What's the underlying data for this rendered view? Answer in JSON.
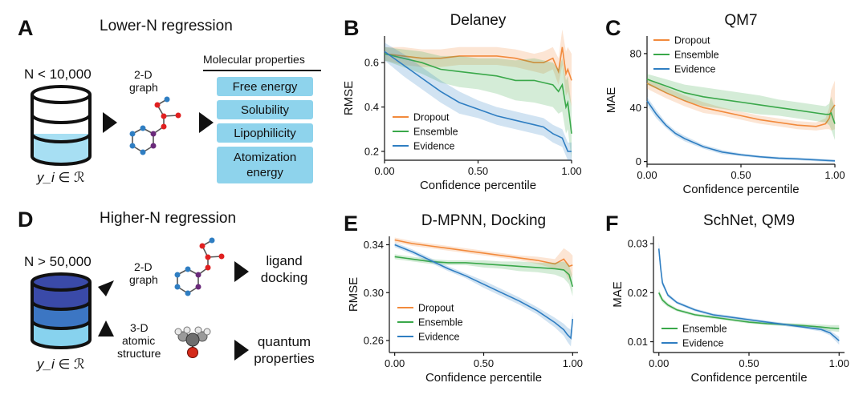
{
  "panels": {
    "A": {
      "label": "A",
      "title": "Lower-N regression"
    },
    "B": {
      "label": "B"
    },
    "C": {
      "label": "C"
    },
    "D": {
      "label": "D",
      "title": "Higher-N regression"
    },
    "E": {
      "label": "E"
    },
    "F": {
      "label": "F"
    }
  },
  "diagram_a": {
    "n_label": "N < 10,000",
    "y_label": "y_i ∈ ℛ",
    "graph_label_1": "2-D",
    "graph_label_2": "graph",
    "props_header": "Molecular properties",
    "props": [
      "Free energy",
      "Solubility",
      "Lipophilicity",
      "Atomization",
      "energy"
    ],
    "box_color": "#8ed3ec",
    "db_fill": "#a7dff3"
  },
  "diagram_d": {
    "n_label": "N > 50,000",
    "y_label": "y_i ∈ ℛ",
    "graph_label_1": "2-D",
    "graph_label_2": "graph",
    "struct_label_1": "3-D",
    "struct_label_2": "atomic",
    "struct_label_3": "structure",
    "out1_line1": "ligand",
    "out1_line2": "docking",
    "out2_line1": "quantum",
    "out2_line2": "properties",
    "db_colors": [
      "#3a4aa8",
      "#3c76c3",
      "#87d2ee"
    ]
  },
  "colors": {
    "Dropout": "#f28a3c",
    "Ensemble": "#3aa84a",
    "Evidence": "#2f7ec2"
  },
  "chart_data": [
    {
      "id": "B",
      "type": "line",
      "title": "Delaney",
      "xlabel": "Confidence percentile",
      "ylabel": "RMSE",
      "xlim": [
        0,
        1
      ],
      "ylim": [
        0.16,
        0.72
      ],
      "xticks": [
        0,
        0.5,
        1.0
      ],
      "xticklabels": [
        "0.00",
        "0.50",
        "1.00"
      ],
      "yticks": [
        0.2,
        0.4,
        0.6
      ],
      "yticklabels": [
        "0.2",
        "0.4",
        "0.6"
      ],
      "legend": "bottom-left",
      "series": [
        {
          "name": "Dropout",
          "x": [
            0,
            0.1,
            0.2,
            0.3,
            0.4,
            0.5,
            0.6,
            0.7,
            0.8,
            0.85,
            0.9,
            0.93,
            0.95,
            0.97,
            0.98,
            1.0
          ],
          "y": [
            0.64,
            0.63,
            0.62,
            0.62,
            0.63,
            0.63,
            0.63,
            0.62,
            0.6,
            0.6,
            0.62,
            0.56,
            0.67,
            0.55,
            0.57,
            0.52
          ],
          "band": [
            0.03,
            0.04,
            0.04,
            0.04,
            0.04,
            0.04,
            0.04,
            0.04,
            0.04,
            0.05,
            0.05,
            0.06,
            0.08,
            0.1,
            0.1,
            0.12
          ]
        },
        {
          "name": "Ensemble",
          "x": [
            0,
            0.1,
            0.2,
            0.3,
            0.4,
            0.5,
            0.6,
            0.7,
            0.8,
            0.85,
            0.9,
            0.93,
            0.95,
            0.97,
            0.98,
            1.0
          ],
          "y": [
            0.64,
            0.62,
            0.6,
            0.57,
            0.56,
            0.55,
            0.54,
            0.52,
            0.52,
            0.51,
            0.5,
            0.47,
            0.5,
            0.4,
            0.42,
            0.28
          ],
          "band": [
            0.03,
            0.04,
            0.05,
            0.06,
            0.07,
            0.07,
            0.08,
            0.09,
            0.1,
            0.1,
            0.1,
            0.1,
            0.12,
            0.12,
            0.12,
            0.12
          ]
        },
        {
          "name": "Evidence",
          "x": [
            0,
            0.1,
            0.2,
            0.3,
            0.4,
            0.5,
            0.6,
            0.7,
            0.8,
            0.85,
            0.9,
            0.95,
            0.98,
            1.0
          ],
          "y": [
            0.65,
            0.59,
            0.53,
            0.47,
            0.42,
            0.39,
            0.36,
            0.34,
            0.32,
            0.31,
            0.28,
            0.26,
            0.2,
            0.2
          ],
          "band": [
            0.04,
            0.05,
            0.05,
            0.05,
            0.05,
            0.04,
            0.04,
            0.04,
            0.04,
            0.04,
            0.04,
            0.04,
            0.04,
            0.04
          ]
        }
      ]
    },
    {
      "id": "C",
      "type": "line",
      "title": "QM7",
      "xlabel": "Confidence percentile",
      "ylabel": "MAE",
      "xlim": [
        0,
        1
      ],
      "ylim": [
        -2,
        93
      ],
      "xticks": [
        0,
        0.5,
        1.0
      ],
      "xticklabels": [
        "0.00",
        "0.50",
        "1.00"
      ],
      "yticks": [
        0,
        40,
        80
      ],
      "yticklabels": [
        "0",
        "40",
        "80"
      ],
      "legend": "top-left",
      "series": [
        {
          "name": "Dropout",
          "x": [
            0,
            0.1,
            0.2,
            0.3,
            0.4,
            0.5,
            0.6,
            0.7,
            0.8,
            0.9,
            0.95,
            0.97,
            0.98,
            1.0
          ],
          "y": [
            58,
            51,
            45,
            40,
            37,
            34,
            31,
            29,
            27,
            26,
            28,
            32,
            38,
            42
          ],
          "band": [
            4,
            4,
            4,
            4,
            3,
            3,
            3,
            3,
            3,
            3,
            4,
            8,
            15,
            18
          ]
        },
        {
          "name": "Ensemble",
          "x": [
            0,
            0.1,
            0.2,
            0.3,
            0.4,
            0.5,
            0.6,
            0.7,
            0.8,
            0.9,
            0.95,
            0.97,
            0.98,
            1.0
          ],
          "y": [
            61,
            56,
            51,
            48,
            46,
            44,
            42,
            40,
            38,
            36,
            35,
            35,
            36,
            28
          ],
          "band": [
            4,
            5,
            6,
            7,
            7,
            7,
            7,
            6,
            6,
            6,
            6,
            8,
            12,
            12
          ]
        },
        {
          "name": "Evidence",
          "x": [
            0,
            0.05,
            0.1,
            0.15,
            0.2,
            0.3,
            0.4,
            0.5,
            0.6,
            0.7,
            0.8,
            0.9,
            1.0
          ],
          "y": [
            45,
            35,
            27,
            21,
            17,
            11,
            7,
            5,
            3.5,
            2.5,
            2,
            1.2,
            0.5
          ],
          "band": [
            3,
            3,
            2,
            2,
            2,
            1.5,
            1.5,
            1,
            1,
            1,
            1,
            1,
            1
          ]
        }
      ]
    },
    {
      "id": "E",
      "type": "line",
      "title": "D-MPNN, Docking",
      "xlabel": "Confidence percentile",
      "ylabel": "RMSE",
      "xlim": [
        -0.03,
        1.03
      ],
      "ylim": [
        0.25,
        0.347
      ],
      "xticks": [
        0,
        0.5,
        1.0
      ],
      "xticklabels": [
        "0.00",
        "0.50",
        "1.00"
      ],
      "yticks": [
        0.26,
        0.3,
        0.34
      ],
      "yticklabels": [
        "0.26",
        "0.30",
        "0.34"
      ],
      "legend": "bottom-left",
      "series": [
        {
          "name": "Dropout",
          "x": [
            0,
            0.1,
            0.2,
            0.3,
            0.4,
            0.5,
            0.6,
            0.7,
            0.8,
            0.9,
            0.95,
            0.98,
            1.0
          ],
          "y": [
            0.344,
            0.341,
            0.339,
            0.337,
            0.335,
            0.333,
            0.331,
            0.329,
            0.327,
            0.324,
            0.328,
            0.322,
            0.323
          ],
          "band": [
            0.002,
            0.002,
            0.002,
            0.002,
            0.002,
            0.002,
            0.002,
            0.002,
            0.003,
            0.004,
            0.009,
            0.012,
            0.008
          ]
        },
        {
          "name": "Ensemble",
          "x": [
            0,
            0.1,
            0.2,
            0.3,
            0.4,
            0.5,
            0.6,
            0.7,
            0.8,
            0.9,
            0.95,
            0.98,
            1.0
          ],
          "y": [
            0.33,
            0.328,
            0.326,
            0.325,
            0.325,
            0.324,
            0.323,
            0.322,
            0.321,
            0.32,
            0.319,
            0.315,
            0.305
          ],
          "band": [
            0.002,
            0.002,
            0.002,
            0.002,
            0.002,
            0.003,
            0.003,
            0.004,
            0.004,
            0.005,
            0.007,
            0.008,
            0.008
          ]
        },
        {
          "name": "Evidence",
          "x": [
            0,
            0.1,
            0.2,
            0.3,
            0.4,
            0.5,
            0.6,
            0.7,
            0.8,
            0.9,
            0.95,
            0.97,
            0.99,
            1.0
          ],
          "y": [
            0.34,
            0.334,
            0.327,
            0.32,
            0.314,
            0.307,
            0.3,
            0.293,
            0.285,
            0.275,
            0.269,
            0.265,
            0.262,
            0.278
          ],
          "band": [
            0.002,
            0.002,
            0.002,
            0.002,
            0.002,
            0.003,
            0.003,
            0.003,
            0.003,
            0.004,
            0.005,
            0.006,
            0.007,
            0.006
          ]
        }
      ]
    },
    {
      "id": "F",
      "type": "line",
      "title": "SchNet, QM9",
      "xlabel": "Confidence percentile",
      "ylabel": "MAE",
      "xlim": [
        -0.03,
        1.03
      ],
      "ylim": [
        0.0078,
        0.0315
      ],
      "xticks": [
        0,
        0.5,
        1.0
      ],
      "xticklabels": [
        "0.00",
        "0.50",
        "1.00"
      ],
      "yticks": [
        0.01,
        0.02,
        0.03
      ],
      "yticklabels": [
        "0.01",
        "0.02",
        "0.03"
      ],
      "legend": "bottom-left",
      "series": [
        {
          "name": "Ensemble",
          "x": [
            0,
            0.02,
            0.05,
            0.1,
            0.2,
            0.3,
            0.4,
            0.5,
            0.6,
            0.7,
            0.8,
            0.9,
            0.95,
            1.0
          ],
          "y": [
            0.02,
            0.0185,
            0.0175,
            0.0165,
            0.0155,
            0.015,
            0.0145,
            0.014,
            0.0137,
            0.0135,
            0.0133,
            0.013,
            0.0128,
            0.0127
          ],
          "band": [
            0.0007,
            0.0005,
            0.0004,
            0.0003,
            0.0003,
            0.0003,
            0.0003,
            0.0003,
            0.0003,
            0.0003,
            0.0004,
            0.0005,
            0.0006,
            0.0007
          ]
        },
        {
          "name": "Evidence",
          "x": [
            0,
            0.01,
            0.02,
            0.05,
            0.1,
            0.2,
            0.3,
            0.4,
            0.5,
            0.6,
            0.7,
            0.8,
            0.9,
            0.95,
            1.0
          ],
          "y": [
            0.029,
            0.025,
            0.022,
            0.0195,
            0.018,
            0.0165,
            0.0155,
            0.015,
            0.0145,
            0.014,
            0.0135,
            0.013,
            0.0125,
            0.0118,
            0.0102
          ],
          "band": [
            0.0015,
            0.001,
            0.0006,
            0.0004,
            0.0003,
            0.0003,
            0.0003,
            0.0003,
            0.0003,
            0.0003,
            0.0003,
            0.0003,
            0.0004,
            0.0005,
            0.0008
          ]
        }
      ]
    }
  ]
}
